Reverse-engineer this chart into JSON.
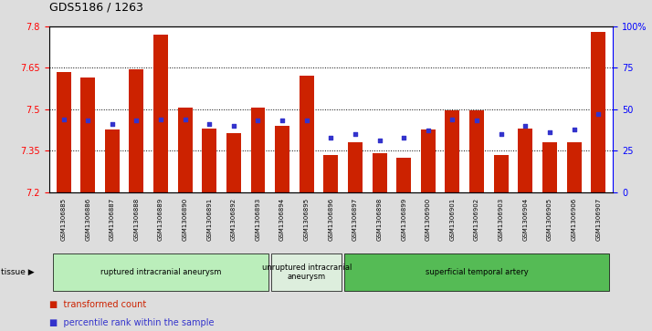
{
  "title": "GDS5186 / 1263",
  "samples": [
    "GSM1306885",
    "GSM1306886",
    "GSM1306887",
    "GSM1306888",
    "GSM1306889",
    "GSM1306890",
    "GSM1306891",
    "GSM1306892",
    "GSM1306893",
    "GSM1306894",
    "GSM1306895",
    "GSM1306896",
    "GSM1306897",
    "GSM1306898",
    "GSM1306899",
    "GSM1306900",
    "GSM1306901",
    "GSM1306902",
    "GSM1306903",
    "GSM1306904",
    "GSM1306905",
    "GSM1306906",
    "GSM1306907"
  ],
  "bar_values": [
    7.635,
    7.615,
    7.425,
    7.645,
    7.77,
    7.505,
    7.43,
    7.415,
    7.505,
    7.44,
    7.62,
    7.335,
    7.38,
    7.34,
    7.325,
    7.425,
    7.495,
    7.495,
    7.335,
    7.43,
    7.38,
    7.38,
    7.78
  ],
  "percentile_values": [
    44,
    43,
    41,
    43,
    44,
    44,
    41,
    40,
    43,
    43,
    43,
    33,
    35,
    31,
    33,
    37,
    44,
    43,
    35,
    40,
    36,
    38,
    47
  ],
  "ymin": 7.2,
  "ymax": 7.8,
  "yticks": [
    7.2,
    7.35,
    7.5,
    7.65,
    7.8
  ],
  "right_yticks": [
    0,
    25,
    50,
    75,
    100
  ],
  "right_ylabels": [
    "0",
    "25",
    "50",
    "75",
    "100%"
  ],
  "bar_color": "#cc2200",
  "dot_color": "#3333cc",
  "fig_bg": "#dddddd",
  "plot_bg": "#ffffff",
  "groups": [
    {
      "label": "ruptured intracranial aneurysm",
      "start": 0,
      "end": 8,
      "color": "#bbeebb"
    },
    {
      "label": "unruptured intracranial\naneurysm",
      "start": 9,
      "end": 11,
      "color": "#ddeedd"
    },
    {
      "label": "superficial temporal artery",
      "start": 12,
      "end": 22,
      "color": "#55bb55"
    }
  ],
  "legend_items": [
    {
      "label": "transformed count",
      "color": "#cc2200"
    },
    {
      "label": "percentile rank within the sample",
      "color": "#3333cc"
    }
  ]
}
